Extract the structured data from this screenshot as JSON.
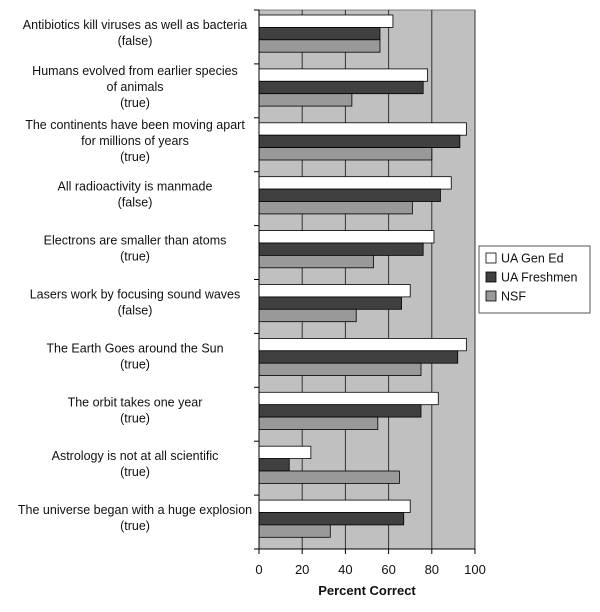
{
  "chart_data": {
    "type": "bar",
    "orientation": "horizontal",
    "categories": [
      [
        "Antibiotics kill viruses as well as bacteria",
        "(false)"
      ],
      [
        "Humans evolved from earlier species",
        "of animals",
        "(true)"
      ],
      [
        "The continents have been moving apart",
        "for millions of years",
        "(true)"
      ],
      [
        "All radioactivity is manmade",
        "(false)"
      ],
      [
        "Electrons are smaller than atoms",
        "(true)"
      ],
      [
        "Lasers work by focusing sound waves",
        "(false)"
      ],
      [
        "The Earth Goes around the Sun",
        "(true)"
      ],
      [
        "The orbit takes one year",
        "(true)"
      ],
      [
        "Astrology is not at all scientific",
        "(true)"
      ],
      [
        "The universe began with a huge explosion",
        "(true)"
      ]
    ],
    "series": [
      {
        "name": "UA Gen Ed",
        "color": "#ffffff",
        "values": [
          62,
          78,
          96,
          89,
          81,
          70,
          96,
          83,
          24,
          70
        ]
      },
      {
        "name": "UA Freshmen",
        "color": "#404040",
        "values": [
          56,
          76,
          93,
          84,
          76,
          66,
          92,
          75,
          14,
          67
        ]
      },
      {
        "name": "NSF",
        "color": "#999999",
        "values": [
          56,
          43,
          80,
          71,
          53,
          45,
          75,
          55,
          65,
          33
        ]
      }
    ],
    "xlabel": "Percent Correct",
    "ylabel": "",
    "xlim": [
      0,
      100
    ],
    "xticks": [
      "0",
      "20",
      "40",
      "60",
      "80",
      "100"
    ],
    "plot_background": "#c0c0c0",
    "grid": true,
    "legend_position": "right"
  }
}
